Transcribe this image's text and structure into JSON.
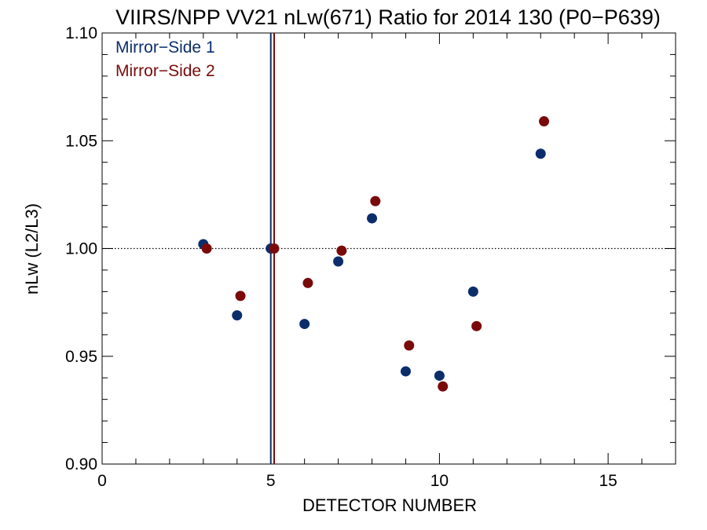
{
  "chart_data": {
    "type": "scatter",
    "title": "VIIRS/NPP VV21 nLw(671) Ratio for 2014 130 (P0−P639)",
    "xlabel": "DETECTOR NUMBER",
    "ylabel": "nLw (L2/L3)",
    "xlim": [
      0,
      17
    ],
    "ylim": [
      0.9,
      1.1
    ],
    "xticks": [
      0,
      5,
      10,
      15
    ],
    "xtick_labels": [
      "0",
      "5",
      "10",
      "15"
    ],
    "yticks": [
      0.9,
      0.95,
      1.0,
      1.05,
      1.1
    ],
    "ytick_labels": [
      "0.90",
      "0.95",
      "1.00",
      "1.05",
      "1.10"
    ],
    "reference_line_y": 1.0,
    "legend_position": "top-left",
    "series": [
      {
        "name": "Mirror−Side 1",
        "color": "#0b2e6b",
        "vline_x": 5,
        "points": [
          {
            "x": 3,
            "y": 1.002
          },
          {
            "x": 4,
            "y": 0.969
          },
          {
            "x": 5,
            "y": 1.0
          },
          {
            "x": 6,
            "y": 0.965
          },
          {
            "x": 7,
            "y": 0.994
          },
          {
            "x": 8,
            "y": 1.014
          },
          {
            "x": 9,
            "y": 0.943
          },
          {
            "x": 10,
            "y": 0.941
          },
          {
            "x": 11,
            "y": 0.98
          },
          {
            "x": 13,
            "y": 1.044
          }
        ]
      },
      {
        "name": "Mirror−Side 2",
        "color": "#7a0a0a",
        "vline_x": 5.1,
        "points": [
          {
            "x": 3.1,
            "y": 1.0
          },
          {
            "x": 4.1,
            "y": 0.978
          },
          {
            "x": 5.1,
            "y": 1.0
          },
          {
            "x": 6.1,
            "y": 0.984
          },
          {
            "x": 7.1,
            "y": 0.999
          },
          {
            "x": 8.1,
            "y": 1.022
          },
          {
            "x": 9.1,
            "y": 0.955
          },
          {
            "x": 10.1,
            "y": 0.936
          },
          {
            "x": 11.1,
            "y": 0.964
          },
          {
            "x": 13.1,
            "y": 1.059
          }
        ]
      }
    ]
  }
}
